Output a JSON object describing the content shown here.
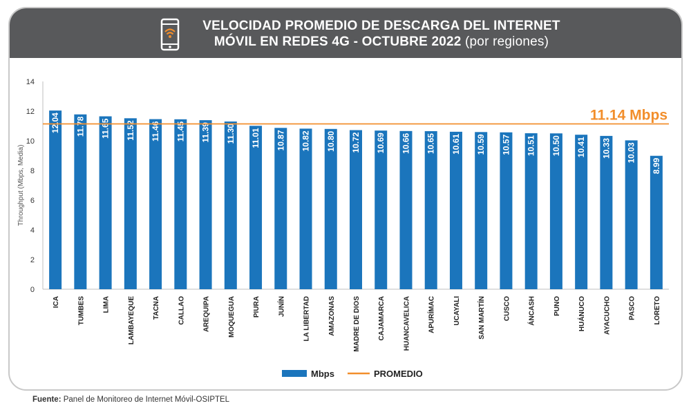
{
  "header": {
    "title_line1": "VELOCIDAD PROMEDIO DE DESCARGA DEL INTERNET",
    "title_line2_bold": "MÓVIL EN REDES 4G - OCTUBRE 2022",
    "title_line2_light": "(por regiones)",
    "icon": "smartphone-wifi-icon"
  },
  "footer": {
    "label": "Fuente:",
    "text": "Panel de Monitoreo de Internet Móvil-OSIPTEL"
  },
  "colors": {
    "bar": "#1b75bc",
    "average_line": "#f28e2b",
    "average_label": "#f28e2b",
    "banner": "#58595b",
    "icon_wifi": "#f28e2b"
  },
  "chart_data": {
    "type": "bar",
    "categories": [
      "ICA",
      "TUMBES",
      "LIMA",
      "LAMBAYEQUE",
      "TACNA",
      "CALLAO",
      "AREQUIPA",
      "MOQUEGUA",
      "PIURA",
      "JUNÍN",
      "LA LIBERTAD",
      "AMAZONAS",
      "MADRE DE DIOS",
      "CAJAMARCA",
      "HUANCAVELICA",
      "APURÍMAC",
      "UCAYALI",
      "SAN MARTÍN",
      "CUSCO",
      "ÁNCASH",
      "PUNO",
      "HUÁNUCO",
      "AYACUCHO",
      "PASCO",
      "LORETO"
    ],
    "series": [
      {
        "name": "Mbps",
        "values": [
          12.04,
          11.78,
          11.65,
          11.52,
          11.46,
          11.45,
          11.39,
          11.3,
          11.01,
          10.87,
          10.82,
          10.8,
          10.72,
          10.69,
          10.66,
          10.65,
          10.61,
          10.59,
          10.57,
          10.51,
          10.5,
          10.41,
          10.33,
          10.03,
          8.99
        ]
      }
    ],
    "value_labels": [
      "12.04",
      "11.78",
      "11.65",
      "11.52",
      "11.46",
      "11.45",
      "11.39",
      "11.30",
      "11.01",
      "10.87",
      "10.82",
      "10.80",
      "10.72",
      "10.69",
      "10.66",
      "10.65",
      "10.61",
      "10.59",
      "10.57",
      "10.51",
      "10.50",
      "10.41",
      "10.33",
      "10.03",
      "8.99"
    ],
    "average": {
      "name": "PROMEDIO",
      "value": 11.14,
      "label": "11.14 Mbps"
    },
    "ylabel": "Throughput (Mbps, Media)",
    "xlabel": "",
    "ylim": [
      0,
      14
    ],
    "yticks": [
      0,
      2,
      4,
      6,
      8,
      10,
      12,
      14
    ],
    "grid": false,
    "legend": {
      "position": "bottom-center",
      "entries": [
        "Mbps",
        "PROMEDIO"
      ]
    }
  }
}
